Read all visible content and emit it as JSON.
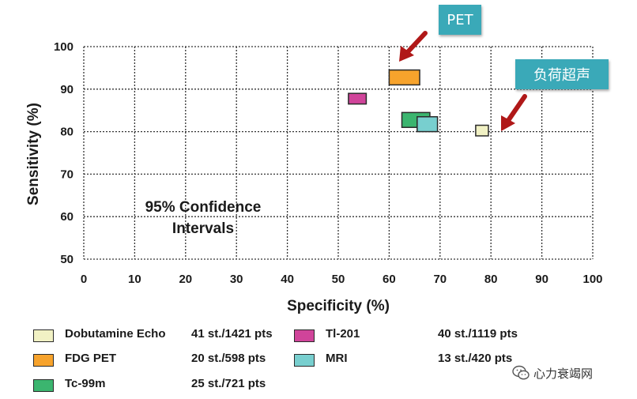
{
  "chart_data": {
    "type": "scatter",
    "xlabel": "Specificity (%)",
    "ylabel": "Sensitivity (%)",
    "xlim": [
      0,
      100
    ],
    "ylim": [
      50,
      100
    ],
    "x_ticks": [
      "0",
      "10",
      "20",
      "30",
      "40",
      "50",
      "60",
      "70",
      "80",
      "90",
      "100"
    ],
    "y_ticks": [
      "50",
      "60",
      "70",
      "80",
      "90",
      "100"
    ],
    "grid": "dotted",
    "annotation": [
      "95% Confidence",
      "Intervals"
    ],
    "series": [
      {
        "name": "Dobutamine Echo",
        "studies": "41 st./1421 pts",
        "color": "#f1f1c4",
        "x_range": [
          77,
          79.5
        ],
        "y_range": [
          79,
          81.5
        ]
      },
      {
        "name": "FDG PET",
        "studies": "20 st./598 pts",
        "color": "#f7a32c",
        "x_range": [
          60,
          66
        ],
        "y_range": [
          91,
          94.5
        ]
      },
      {
        "name": "Tc-99m",
        "studies": "25 st./721 pts",
        "color": "#3bb56f",
        "x_range": [
          62.5,
          68
        ],
        "y_range": [
          81,
          84.5
        ]
      },
      {
        "name": "Tl-201",
        "studies": "40 st./1119 pts",
        "color": "#d0449a",
        "x_range": [
          52,
          55.5
        ],
        "y_range": [
          86.5,
          89
        ]
      },
      {
        "name": "MRI",
        "studies": "13 st./420 pts",
        "color": "#78cfcf",
        "x_range": [
          65.5,
          69.5
        ],
        "y_range": [
          80,
          83.5
        ]
      }
    ]
  },
  "callouts": {
    "pet": "PET",
    "echo": "负荷超声"
  },
  "colors": {
    "callout_bg": "#3aa9b8",
    "arrow": "#b01818"
  },
  "watermark": {
    "text": "心力衰竭网"
  }
}
